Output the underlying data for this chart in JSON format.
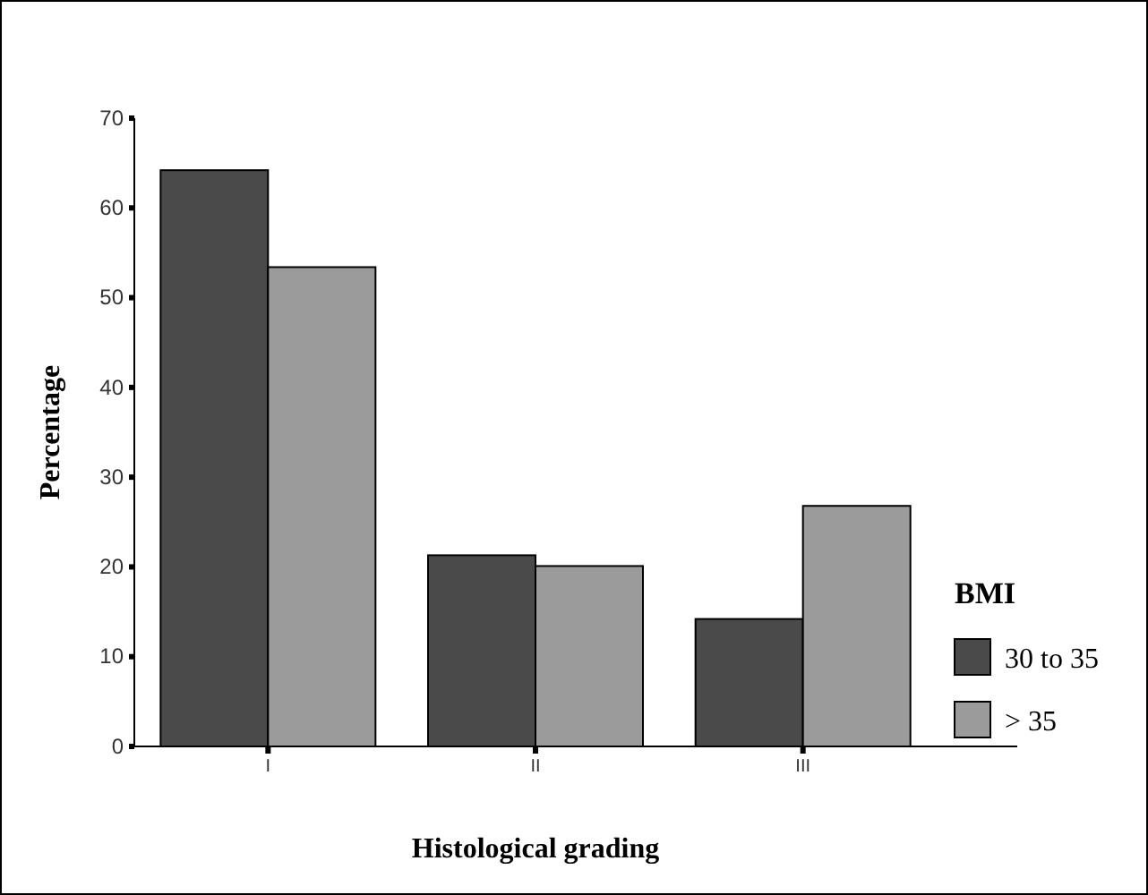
{
  "chart_data": {
    "type": "bar",
    "xlabel": "Histological grading",
    "ylabel": "Percentage",
    "legend_title": "BMI",
    "categories": [
      "I",
      "II",
      "III"
    ],
    "series": [
      {
        "name": "30 to 35",
        "color": "#4a4a4a",
        "values": [
          64.2,
          21.3,
          14.2
        ]
      },
      {
        "name": "> 35",
        "color": "#9b9b9b",
        "values": [
          53.4,
          20.1,
          26.8
        ]
      }
    ],
    "ylim": [
      0,
      70
    ],
    "yticks": [
      0,
      10,
      20,
      30,
      40,
      50,
      60,
      70
    ],
    "grid": false,
    "legend": "right"
  }
}
